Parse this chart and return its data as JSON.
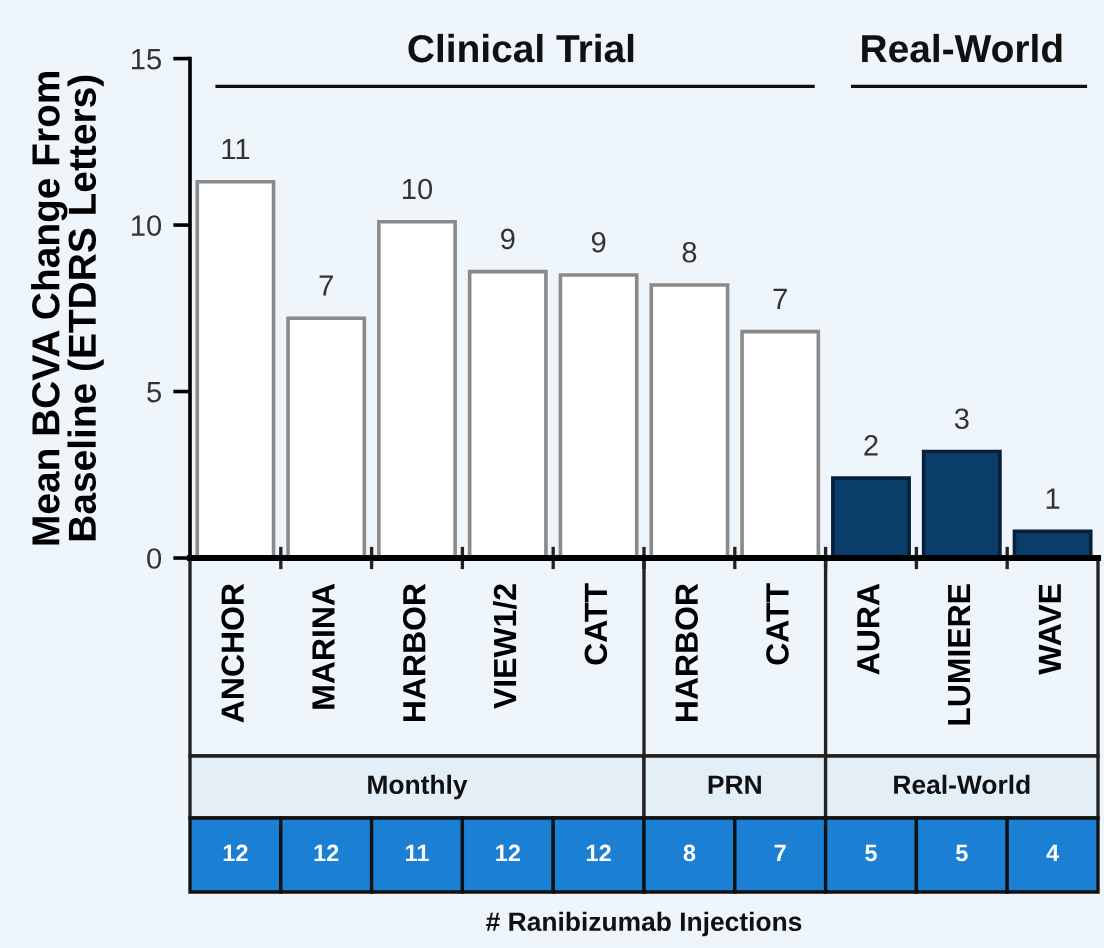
{
  "chart_data": {
    "type": "bar",
    "ylabel": "Mean BCVA Change From\nBaseline (ETDRS Letters)",
    "categories": [
      "ANCHOR",
      "MARINA",
      "HARBOR",
      "VIEW1/2",
      "CATT",
      "HARBOR",
      "CATT",
      "AURA",
      "LUMIERE",
      "WAVE"
    ],
    "values": [
      11.3,
      7.2,
      10.1,
      8.6,
      8.5,
      8.2,
      6.8,
      2.4,
      3.2,
      0.8
    ],
    "colors": [
      "#ffffff",
      "#ffffff",
      "#ffffff",
      "#ffffff",
      "#ffffff",
      "#ffffff",
      "#ffffff",
      "#0b3d6b",
      "#0b3d6b",
      "#0b3d6b"
    ],
    "value_labels": [
      "11",
      "7",
      "10",
      "9",
      "9",
      "8",
      "7",
      "2",
      "3",
      "1"
    ],
    "ylim": [
      0,
      15
    ],
    "yticks": [
      0,
      5,
      10,
      15
    ],
    "grid": false,
    "annotations": [
      "Clinical Trial",
      "Real-World",
      "Monthly",
      "PRN",
      "Real-World",
      "12",
      "12",
      "11",
      "12",
      "12",
      "8",
      "7",
      "5",
      "5",
      "4",
      "# Ranibizumab Injections"
    ]
  }
}
